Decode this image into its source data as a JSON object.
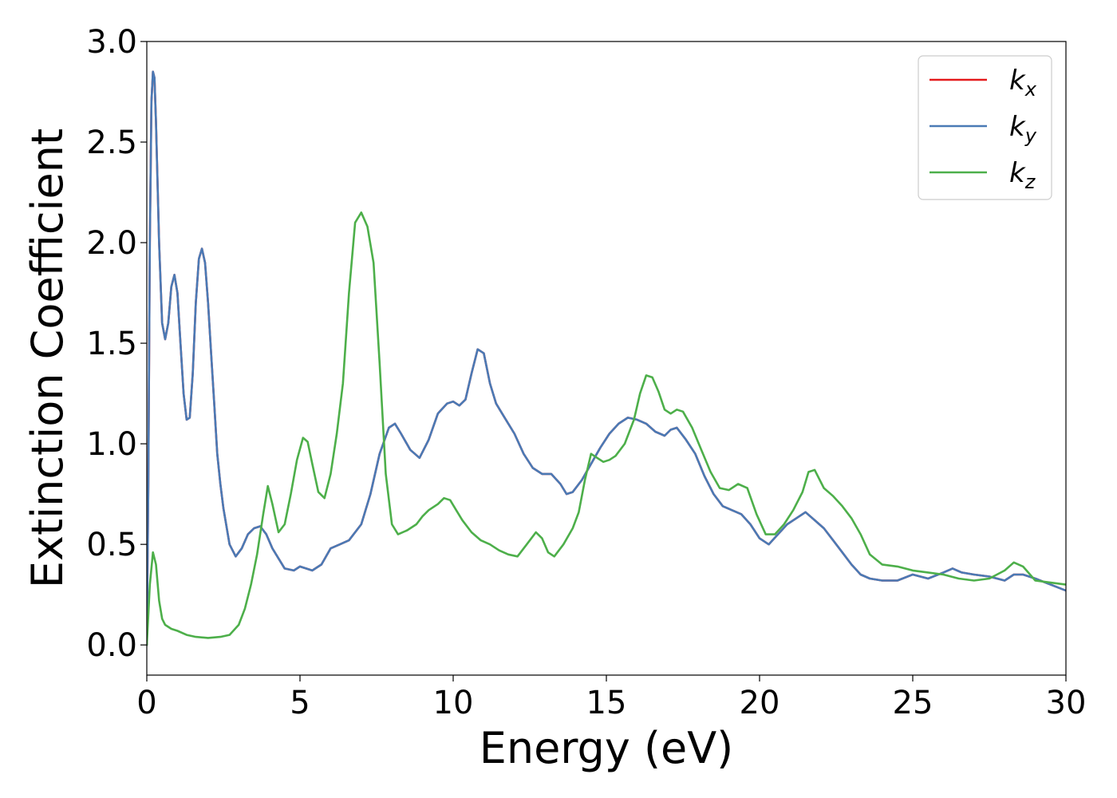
{
  "chart_data": {
    "type": "line",
    "xlabel": "Energy (eV)",
    "ylabel": "Extinction Coefficient",
    "xlim": [
      0,
      30
    ],
    "ylim": [
      -0.15,
      3.0
    ],
    "xticks": [
      0,
      5,
      10,
      15,
      20,
      25,
      30
    ],
    "xtick_labels": [
      "0",
      "5",
      "10",
      "15",
      "20",
      "25",
      "30"
    ],
    "yticks": [
      0.0,
      0.5,
      1.0,
      1.5,
      2.0,
      2.5,
      3.0
    ],
    "ytick_labels": [
      "0.0",
      "0.5",
      "1.0",
      "1.5",
      "2.0",
      "2.5",
      "3.0"
    ],
    "grid": false,
    "legend_position": "top-right",
    "series": [
      {
        "name": "k",
        "subscript": "x",
        "color": "#e41a1c",
        "x": [
          0,
          0.05,
          0.1,
          0.15,
          0.2,
          0.25,
          0.3,
          0.4,
          0.5,
          0.6,
          0.7,
          0.8,
          0.9,
          1.0,
          1.1,
          1.2,
          1.3,
          1.4,
          1.5,
          1.6,
          1.7,
          1.8,
          1.9,
          2.0,
          2.1,
          2.2,
          2.3,
          2.4,
          2.5,
          2.7,
          2.9,
          3.1,
          3.3,
          3.5,
          3.7,
          3.9,
          4.1,
          4.3,
          4.5,
          4.8,
          5.0,
          5.2,
          5.4,
          5.7,
          6.0,
          6.3,
          6.6,
          7.0,
          7.3,
          7.6,
          7.9,
          8.1,
          8.3,
          8.6,
          8.9,
          9.2,
          9.5,
          9.8,
          10.0,
          10.2,
          10.4,
          10.6,
          10.8,
          11.0,
          11.2,
          11.4,
          11.6,
          11.8,
          12.0,
          12.3,
          12.6,
          12.9,
          13.2,
          13.5,
          13.7,
          13.9,
          14.2,
          14.5,
          14.8,
          15.1,
          15.4,
          15.7,
          16.0,
          16.3,
          16.6,
          16.9,
          17.1,
          17.3,
          17.6,
          17.9,
          18.2,
          18.5,
          18.8,
          19.1,
          19.4,
          19.7,
          20.0,
          20.3,
          20.6,
          20.9,
          21.2,
          21.5,
          21.8,
          22.1,
          22.4,
          22.7,
          23.0,
          23.3,
          23.6,
          24.0,
          24.5,
          25.0,
          25.5,
          26.0,
          26.3,
          26.6,
          27.0,
          27.5,
          28.0,
          28.3,
          28.6,
          29.0,
          29.5,
          30.0
        ],
        "y": [
          0.0,
          0.8,
          2.0,
          2.7,
          2.85,
          2.82,
          2.6,
          2.0,
          1.6,
          1.52,
          1.6,
          1.78,
          1.84,
          1.75,
          1.5,
          1.25,
          1.12,
          1.13,
          1.35,
          1.7,
          1.92,
          1.97,
          1.9,
          1.7,
          1.45,
          1.2,
          0.95,
          0.8,
          0.68,
          0.5,
          0.44,
          0.48,
          0.55,
          0.58,
          0.59,
          0.55,
          0.48,
          0.43,
          0.38,
          0.37,
          0.39,
          0.38,
          0.37,
          0.4,
          0.48,
          0.5,
          0.52,
          0.6,
          0.75,
          0.95,
          1.08,
          1.1,
          1.05,
          0.97,
          0.93,
          1.02,
          1.15,
          1.2,
          1.21,
          1.19,
          1.22,
          1.35,
          1.47,
          1.45,
          1.3,
          1.2,
          1.15,
          1.1,
          1.05,
          0.95,
          0.88,
          0.85,
          0.85,
          0.8,
          0.75,
          0.76,
          0.82,
          0.9,
          0.98,
          1.05,
          1.1,
          1.13,
          1.12,
          1.1,
          1.06,
          1.04,
          1.07,
          1.08,
          1.02,
          0.95,
          0.84,
          0.75,
          0.69,
          0.67,
          0.65,
          0.6,
          0.53,
          0.5,
          0.55,
          0.6,
          0.63,
          0.66,
          0.62,
          0.58,
          0.52,
          0.46,
          0.4,
          0.35,
          0.33,
          0.32,
          0.32,
          0.35,
          0.33,
          0.36,
          0.38,
          0.36,
          0.35,
          0.34,
          0.32,
          0.35,
          0.35,
          0.33,
          0.3,
          0.27
        ]
      },
      {
        "name": "k",
        "subscript": "y",
        "color": "#4a7ab5",
        "x": [
          0,
          0.05,
          0.1,
          0.15,
          0.2,
          0.25,
          0.3,
          0.4,
          0.5,
          0.6,
          0.7,
          0.8,
          0.9,
          1.0,
          1.1,
          1.2,
          1.3,
          1.4,
          1.5,
          1.6,
          1.7,
          1.8,
          1.9,
          2.0,
          2.1,
          2.2,
          2.3,
          2.4,
          2.5,
          2.7,
          2.9,
          3.1,
          3.3,
          3.5,
          3.7,
          3.9,
          4.1,
          4.3,
          4.5,
          4.8,
          5.0,
          5.2,
          5.4,
          5.7,
          6.0,
          6.3,
          6.6,
          7.0,
          7.3,
          7.6,
          7.9,
          8.1,
          8.3,
          8.6,
          8.9,
          9.2,
          9.5,
          9.8,
          10.0,
          10.2,
          10.4,
          10.6,
          10.8,
          11.0,
          11.2,
          11.4,
          11.6,
          11.8,
          12.0,
          12.3,
          12.6,
          12.9,
          13.2,
          13.5,
          13.7,
          13.9,
          14.2,
          14.5,
          14.8,
          15.1,
          15.4,
          15.7,
          16.0,
          16.3,
          16.6,
          16.9,
          17.1,
          17.3,
          17.6,
          17.9,
          18.2,
          18.5,
          18.8,
          19.1,
          19.4,
          19.7,
          20.0,
          20.3,
          20.6,
          20.9,
          21.2,
          21.5,
          21.8,
          22.1,
          22.4,
          22.7,
          23.0,
          23.3,
          23.6,
          24.0,
          24.5,
          25.0,
          25.5,
          26.0,
          26.3,
          26.6,
          27.0,
          27.5,
          28.0,
          28.3,
          28.6,
          29.0,
          29.5,
          30.0
        ],
        "y": [
          0.0,
          0.8,
          2.0,
          2.7,
          2.85,
          2.82,
          2.6,
          2.0,
          1.6,
          1.52,
          1.6,
          1.78,
          1.84,
          1.75,
          1.5,
          1.25,
          1.12,
          1.13,
          1.35,
          1.7,
          1.92,
          1.97,
          1.9,
          1.7,
          1.45,
          1.2,
          0.95,
          0.8,
          0.68,
          0.5,
          0.44,
          0.48,
          0.55,
          0.58,
          0.59,
          0.55,
          0.48,
          0.43,
          0.38,
          0.37,
          0.39,
          0.38,
          0.37,
          0.4,
          0.48,
          0.5,
          0.52,
          0.6,
          0.75,
          0.95,
          1.08,
          1.1,
          1.05,
          0.97,
          0.93,
          1.02,
          1.15,
          1.2,
          1.21,
          1.19,
          1.22,
          1.35,
          1.47,
          1.45,
          1.3,
          1.2,
          1.15,
          1.1,
          1.05,
          0.95,
          0.88,
          0.85,
          0.85,
          0.8,
          0.75,
          0.76,
          0.82,
          0.9,
          0.98,
          1.05,
          1.1,
          1.13,
          1.12,
          1.1,
          1.06,
          1.04,
          1.07,
          1.08,
          1.02,
          0.95,
          0.84,
          0.75,
          0.69,
          0.67,
          0.65,
          0.6,
          0.53,
          0.5,
          0.55,
          0.6,
          0.63,
          0.66,
          0.62,
          0.58,
          0.52,
          0.46,
          0.4,
          0.35,
          0.33,
          0.32,
          0.32,
          0.35,
          0.33,
          0.36,
          0.38,
          0.36,
          0.35,
          0.34,
          0.32,
          0.35,
          0.35,
          0.33,
          0.3,
          0.27
        ]
      },
      {
        "name": "k",
        "subscript": "z",
        "color": "#4daf4a",
        "x": [
          0,
          0.1,
          0.2,
          0.3,
          0.4,
          0.5,
          0.6,
          0.8,
          1.0,
          1.3,
          1.6,
          2.0,
          2.4,
          2.7,
          3.0,
          3.2,
          3.4,
          3.6,
          3.8,
          3.95,
          4.1,
          4.3,
          4.5,
          4.7,
          4.9,
          5.1,
          5.25,
          5.4,
          5.6,
          5.8,
          6.0,
          6.2,
          6.4,
          6.6,
          6.8,
          7.0,
          7.2,
          7.4,
          7.6,
          7.8,
          8.0,
          8.2,
          8.5,
          8.8,
          9.0,
          9.2,
          9.5,
          9.7,
          9.9,
          10.1,
          10.3,
          10.6,
          10.9,
          11.2,
          11.5,
          11.8,
          12.1,
          12.4,
          12.7,
          12.9,
          13.1,
          13.3,
          13.6,
          13.9,
          14.1,
          14.3,
          14.5,
          14.7,
          14.9,
          15.1,
          15.3,
          15.6,
          15.9,
          16.1,
          16.3,
          16.5,
          16.7,
          16.9,
          17.1,
          17.3,
          17.5,
          17.8,
          18.1,
          18.4,
          18.7,
          19.0,
          19.3,
          19.6,
          19.9,
          20.2,
          20.5,
          20.8,
          21.1,
          21.4,
          21.6,
          21.8,
          22.1,
          22.4,
          22.7,
          23.0,
          23.3,
          23.6,
          24.0,
          24.5,
          25.0,
          25.5,
          26.0,
          26.5,
          27.0,
          27.5,
          28.0,
          28.3,
          28.6,
          29.0,
          29.5,
          30.0
        ],
        "y": [
          0.0,
          0.3,
          0.46,
          0.4,
          0.22,
          0.13,
          0.1,
          0.08,
          0.07,
          0.05,
          0.04,
          0.035,
          0.04,
          0.05,
          0.1,
          0.18,
          0.3,
          0.45,
          0.65,
          0.79,
          0.7,
          0.56,
          0.6,
          0.75,
          0.92,
          1.03,
          1.01,
          0.9,
          0.76,
          0.73,
          0.85,
          1.05,
          1.3,
          1.75,
          2.1,
          2.15,
          2.08,
          1.9,
          1.4,
          0.85,
          0.6,
          0.55,
          0.57,
          0.6,
          0.64,
          0.67,
          0.7,
          0.73,
          0.72,
          0.67,
          0.62,
          0.56,
          0.52,
          0.5,
          0.47,
          0.45,
          0.44,
          0.5,
          0.56,
          0.53,
          0.46,
          0.44,
          0.5,
          0.58,
          0.66,
          0.82,
          0.95,
          0.93,
          0.91,
          0.92,
          0.94,
          1.0,
          1.12,
          1.25,
          1.34,
          1.33,
          1.26,
          1.17,
          1.15,
          1.17,
          1.16,
          1.08,
          0.97,
          0.86,
          0.78,
          0.77,
          0.8,
          0.78,
          0.65,
          0.55,
          0.55,
          0.6,
          0.67,
          0.76,
          0.86,
          0.87,
          0.78,
          0.74,
          0.69,
          0.63,
          0.55,
          0.45,
          0.4,
          0.39,
          0.37,
          0.36,
          0.35,
          0.33,
          0.32,
          0.33,
          0.37,
          0.41,
          0.39,
          0.32,
          0.31,
          0.3
        ]
      }
    ]
  }
}
